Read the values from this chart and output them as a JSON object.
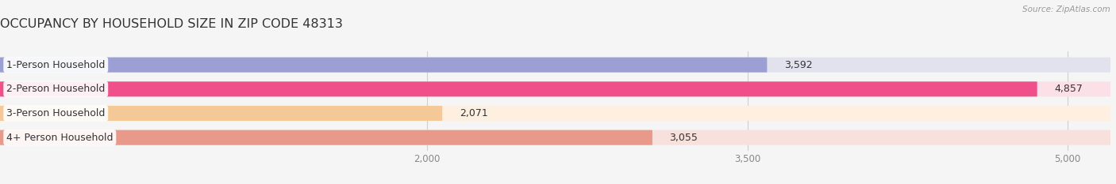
{
  "title": "OCCUPANCY BY HOUSEHOLD SIZE IN ZIP CODE 48313",
  "source": "Source: ZipAtlas.com",
  "categories": [
    "1-Person Household",
    "2-Person Household",
    "3-Person Household",
    "4+ Person Household"
  ],
  "values": [
    3592,
    4857,
    2071,
    3055
  ],
  "bar_colors": [
    "#9b9fd4",
    "#f0508a",
    "#f5c898",
    "#e8998a"
  ],
  "bar_bg_colors": [
    "#e2e2ef",
    "#fbe0e8",
    "#fdf0e0",
    "#f8e0dc"
  ],
  "xmin": 0,
  "xmax": 5200,
  "xticks": [
    2000,
    3500,
    5000
  ],
  "xticklabels": [
    "2,000",
    "3,500",
    "5,000"
  ],
  "value_labels": [
    "3,592",
    "4,857",
    "2,071",
    "3,055"
  ],
  "background_color": "#f5f5f5",
  "bar_height": 0.62,
  "title_fontsize": 11.5,
  "label_fontsize": 9,
  "value_fontsize": 9,
  "tick_fontsize": 8.5,
  "grid_color": "#d0d0d0",
  "text_color": "#333333",
  "source_color": "#999999",
  "tick_color": "#888888"
}
